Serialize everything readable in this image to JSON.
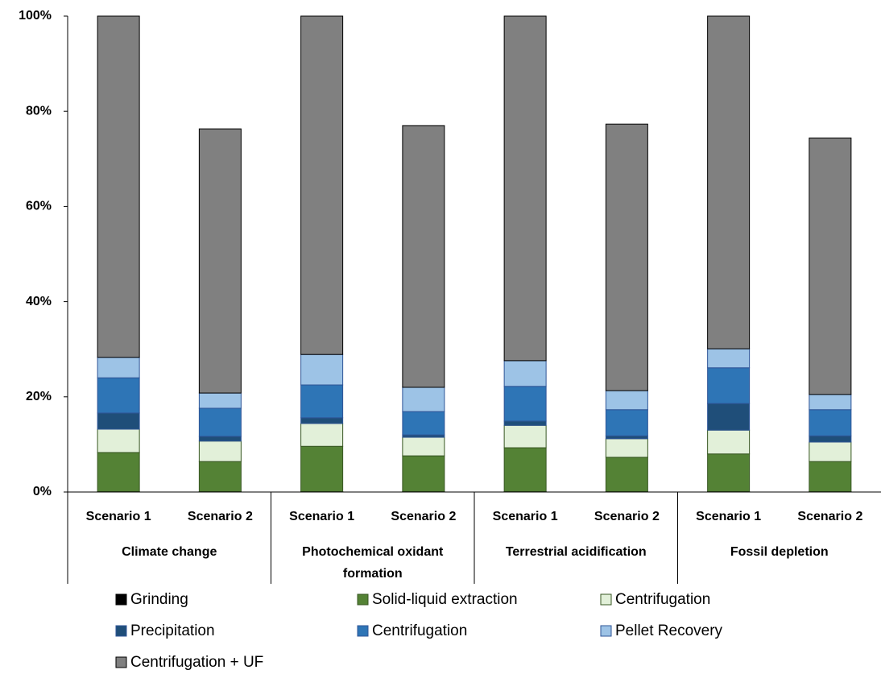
{
  "chart_data": {
    "type": "stacked_bar",
    "groups": [
      {
        "name": "Climate change",
        "categories": [
          "Scenario 1",
          "Scenario 2"
        ]
      },
      {
        "name": "Photochemical oxidant formation",
        "categories": [
          "Scenario 1",
          "Scenario 2"
        ]
      },
      {
        "name": "Terrestrial acidification",
        "categories": [
          "Scenario 1",
          "Scenario 2"
        ]
      },
      {
        "name": "Fossil depletion",
        "categories": [
          "Scenario 1",
          "Scenario 2"
        ]
      }
    ],
    "series": [
      {
        "name": "Grinding",
        "color": "#000000",
        "edgecolor": "#000000",
        "values": [
          0.1,
          0.1,
          0.1,
          0.1,
          0.1,
          0.1,
          0.1,
          0.1
        ]
      },
      {
        "name": "Solid-liquid extraction",
        "color": "#548235",
        "edgecolor": "#385723",
        "values": [
          8.2,
          6.3,
          9.5,
          7.5,
          9.2,
          7.2,
          7.9,
          6.3
        ]
      },
      {
        "name": "Centrifugation",
        "color": "#e2f0d9",
        "edgecolor": "#385723",
        "values": [
          4.9,
          4.3,
          4.8,
          3.9,
          4.7,
          3.9,
          5.0,
          4.1
        ]
      },
      {
        "name": "Precipitation",
        "color": "#1f4e79",
        "edgecolor": "#2f5597",
        "values": [
          3.4,
          1.0,
          1.2,
          0.5,
          0.9,
          0.6,
          5.6,
          1.3
        ]
      },
      {
        "name": "Centrifugation",
        "color": "#2e75b6",
        "edgecolor": "#2f5597",
        "values": [
          7.4,
          5.9,
          6.9,
          4.9,
          7.3,
          5.5,
          7.5,
          5.5
        ]
      },
      {
        "name": "Pellet Recovery",
        "color": "#9dc3e6",
        "edgecolor": "#2f5597",
        "values": [
          4.3,
          3.2,
          6.4,
          5.1,
          5.4,
          4.0,
          4.0,
          3.2
        ]
      },
      {
        "name": "Centrifugation + UF",
        "color": "#808080",
        "edgecolor": "#000000",
        "values": [
          71.7,
          55.5,
          71.1,
          55.0,
          72.4,
          56.0,
          69.9,
          53.9
        ]
      }
    ],
    "ylim": [
      0,
      100
    ],
    "yticks": [
      {
        "value": 0,
        "label": "0%"
      },
      {
        "value": 20,
        "label": "20%"
      },
      {
        "value": 40,
        "label": "40%"
      },
      {
        "value": 60,
        "label": "60%"
      },
      {
        "value": 80,
        "label": "80%"
      },
      {
        "value": 100,
        "label": "100%"
      }
    ],
    "legend": "bottom"
  }
}
